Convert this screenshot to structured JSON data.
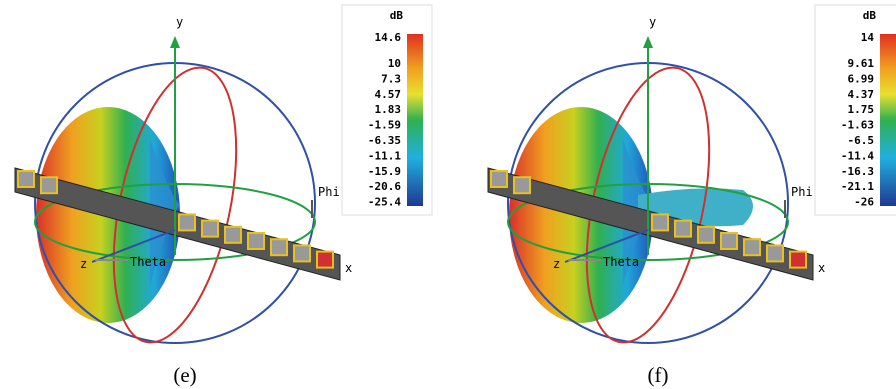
{
  "panels": [
    {
      "caption": "(e)",
      "axes": {
        "x": "x",
        "y": "y",
        "z": "z",
        "theta": "Theta",
        "phi": "Phi"
      },
      "colorbar": {
        "unit": "dB",
        "ticks": [
          14.6,
          10,
          7.3,
          4.57,
          1.83,
          -1.59,
          -6.35,
          -11.1,
          -15.9,
          -20.6,
          -25.4
        ]
      }
    },
    {
      "caption": "(f)",
      "axes": {
        "x": "x",
        "y": "y",
        "z": "z",
        "theta": "Theta",
        "phi": "Phi"
      },
      "colorbar": {
        "unit": "dB",
        "ticks": [
          14,
          9.61,
          6.99,
          4.37,
          1.75,
          -1.63,
          -6.5,
          -11.4,
          -16.3,
          -21.1,
          -26
        ]
      }
    }
  ]
}
